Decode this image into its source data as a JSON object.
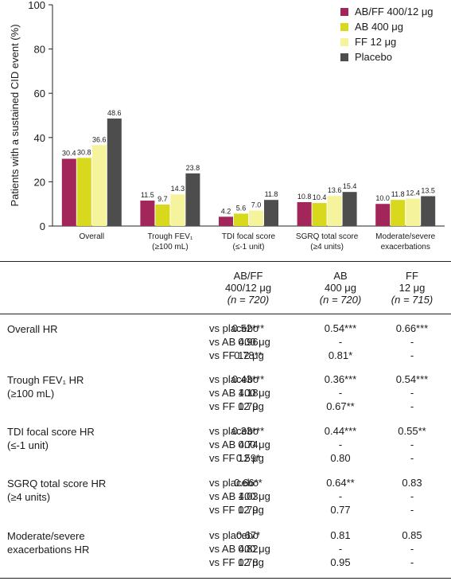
{
  "chart_data": {
    "type": "bar",
    "ylabel": "Patients with a sustained CID event (%)",
    "ylim": [
      0,
      100
    ],
    "yticks": [
      0,
      20,
      40,
      60,
      80,
      100
    ],
    "legend_position": "top-right",
    "categories": [
      [
        "Overall"
      ],
      [
        "Trough FEV₁",
        "(≥100 mL)"
      ],
      [
        "TDI focal score",
        "(≤-1 unit)"
      ],
      [
        "SGRQ total score",
        "(≥4 units)"
      ],
      [
        "Moderate/severe",
        "exacerbations"
      ]
    ],
    "series": [
      {
        "name": "AB/FF 400/12 μg",
        "color": "#a3265a",
        "values": [
          30.4,
          11.5,
          4.2,
          10.8,
          10.0
        ]
      },
      {
        "name": "AB 400 μg",
        "color": "#d8d81c",
        "values": [
          30.8,
          9.7,
          5.6,
          10.4,
          11.8
        ]
      },
      {
        "name": "FF 12 μg",
        "color": "#f5f39c",
        "values": [
          36.6,
          14.3,
          7.0,
          13.6,
          12.4
        ]
      },
      {
        "name": "Placebo",
        "color": "#4d4d4d",
        "values": [
          48.6,
          23.8,
          11.8,
          15.4,
          13.5
        ]
      }
    ],
    "data_labels": [
      [
        "30.4",
        "30.8",
        "36.6",
        "48.6"
      ],
      [
        "11.5",
        "9.7",
        "14.3",
        "23.8"
      ],
      [
        "4.2",
        "5.6",
        "7.0",
        "11.8"
      ],
      [
        "10.8",
        "10.4",
        "13.6",
        "15.4"
      ],
      [
        "10.0",
        "11.8",
        "12.4",
        "13.5"
      ]
    ]
  },
  "table": {
    "headers": [
      {
        "line1": "AB/FF",
        "line2": "400/12 μg",
        "n": "(n = 720)"
      },
      {
        "line1": "AB",
        "line2": "400 μg",
        "n": "(n = 720)"
      },
      {
        "line1": "FF",
        "line2": "12 μg",
        "n": "(n = 715)"
      }
    ],
    "groups": [
      {
        "label": [
          "Overall HR"
        ],
        "rows": [
          {
            "comparison": "vs placebo",
            "values": [
              "0.52***",
              "0.54***",
              "0.66***"
            ]
          },
          {
            "comparison": "vs AB 400 μg",
            "values": [
              "0.96",
              "-",
              "-"
            ]
          },
          {
            "comparison": "vs FF 12 μg",
            "values": [
              "0.78**",
              "0.81*",
              "-"
            ]
          }
        ]
      },
      {
        "label": [
          "Trough FEV₁ HR",
          "(≥100 mL)"
        ],
        "rows": [
          {
            "comparison": "vs placebo",
            "values": [
              "0.43***",
              "0.36***",
              "0.54***"
            ]
          },
          {
            "comparison": "vs AB 400 μg",
            "values": [
              "1.18",
              "-",
              "-"
            ]
          },
          {
            "comparison": "vs FF 12 μg",
            "values": [
              "0.79",
              "0.67**",
              "-"
            ]
          }
        ]
      },
      {
        "label": [
          "TDI focal score HR",
          "(≤-1 unit)"
        ],
        "rows": [
          {
            "comparison": "vs placebo",
            "values": [
              "0.33***",
              "0.44***",
              "0.55**"
            ]
          },
          {
            "comparison": "vs AB 400 μg",
            "values": [
              "0.74",
              "-",
              "-"
            ]
          },
          {
            "comparison": "vs FF 12 μg",
            "values": [
              "0.59*",
              "0.80",
              "-"
            ]
          }
        ]
      },
      {
        "label": [
          "SGRQ total score HR",
          "(≥4 units)"
        ],
        "rows": [
          {
            "comparison": "vs placebo",
            "values": [
              "0.66**",
              "0.64**",
              "0.83"
            ]
          },
          {
            "comparison": "vs AB 400 μg",
            "values": [
              "1.03",
              "-",
              "-"
            ]
          },
          {
            "comparison": "vs FF 12 μg",
            "values": [
              "0.79",
              "0.77",
              "-"
            ]
          }
        ]
      },
      {
        "label": [
          "Moderate/severe",
          "exacerbations HR"
        ],
        "rows": [
          {
            "comparison": "vs placebo",
            "values": [
              "0.67*",
              "0.81",
              "0.85"
            ]
          },
          {
            "comparison": "vs AB 400 μg",
            "values": [
              "0.82",
              "-",
              "-"
            ]
          },
          {
            "comparison": "vs FF 12 μg",
            "values": [
              "0.78",
              "0.95",
              "-"
            ]
          }
        ]
      }
    ]
  }
}
